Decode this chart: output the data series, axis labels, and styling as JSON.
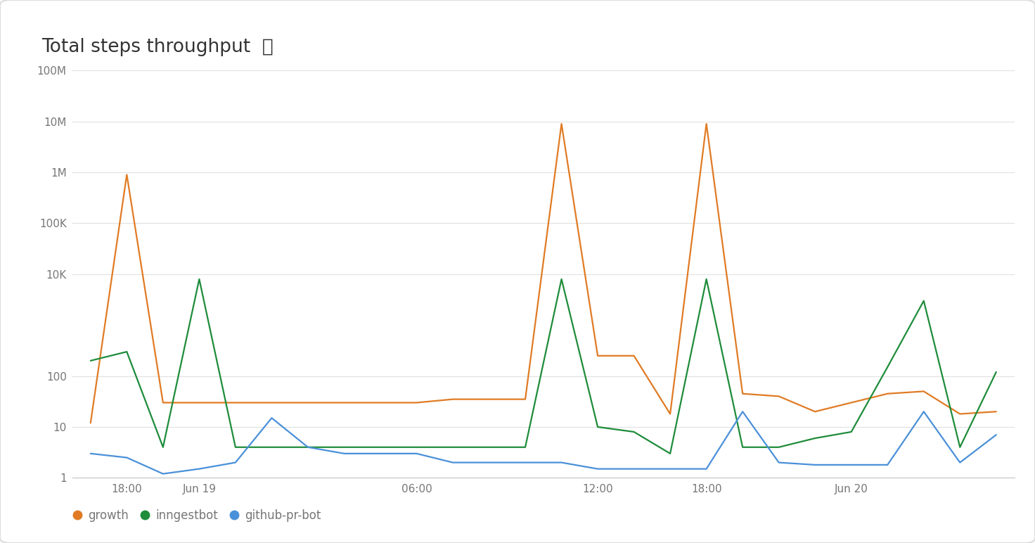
{
  "title_plain": "Total steps throughput",
  "title_symbol": "ⓘ",
  "background_color": "#f8f8f8",
  "card_color": "#ffffff",
  "plot_bg_color": "#ffffff",
  "grid_color": "#e0e0e0",
  "axis_color": "#cccccc",
  "tick_color": "#777777",
  "title_color": "#333333",
  "ylim_log": [
    1,
    100000000
  ],
  "yticks": [
    1,
    10,
    100,
    10000,
    100000,
    1000000,
    10000000,
    100000000
  ],
  "ytick_labels": [
    "1",
    "10",
    "100",
    "10K",
    "100K",
    "1M",
    "10M",
    "100M"
  ],
  "series": [
    {
      "name": "growth",
      "color": "#e07b24",
      "x": [
        0,
        1,
        2,
        3,
        4,
        5,
        6,
        7,
        8,
        9,
        10,
        11,
        12,
        13,
        14,
        15,
        16,
        17,
        18,
        19,
        20,
        21,
        22,
        23,
        24,
        25
      ],
      "y": [
        12,
        900000,
        30,
        30,
        30,
        30,
        30,
        30,
        30,
        30,
        35,
        35,
        35,
        9000000,
        250,
        250,
        18,
        9000000,
        45,
        40,
        20,
        30,
        45,
        50,
        18,
        20
      ]
    },
    {
      "name": "inngestbot",
      "color": "#1e8c3a",
      "x": [
        0,
        1,
        2,
        3,
        4,
        5,
        6,
        7,
        8,
        9,
        10,
        11,
        12,
        13,
        14,
        15,
        16,
        17,
        18,
        19,
        20,
        21,
        22,
        23,
        24,
        25
      ],
      "y": [
        200,
        300,
        4,
        8000,
        4,
        4,
        4,
        4,
        4,
        4,
        4,
        4,
        4,
        8000,
        10,
        8,
        3,
        8000,
        4,
        4,
        6,
        8,
        150,
        3000,
        4,
        120
      ]
    },
    {
      "name": "github-pr-bot",
      "color": "#4a90d9",
      "x": [
        0,
        1,
        2,
        3,
        4,
        5,
        6,
        7,
        8,
        9,
        10,
        11,
        12,
        13,
        14,
        15,
        16,
        17,
        18,
        19,
        20,
        21,
        22,
        23,
        24,
        25
      ],
      "y": [
        3,
        2.5,
        1.2,
        1.5,
        2,
        15,
        4,
        3,
        3,
        3,
        2,
        2,
        2,
        2,
        1.5,
        1.5,
        1.5,
        1.5,
        20,
        2,
        1.8,
        1.8,
        1.8,
        20,
        2,
        7
      ]
    }
  ],
  "legend": [
    {
      "label": "growth",
      "color": "#e07b24"
    },
    {
      "label": "inngestbot",
      "color": "#1e8c3a"
    },
    {
      "label": "github-pr-bot",
      "color": "#4a90d9"
    }
  ],
  "x_tick_positions": [
    1,
    3,
    6,
    9,
    11,
    14,
    17,
    21,
    25
  ],
  "x_tick_labels": [
    "18:00",
    "Jun 19",
    "",
    "06:00",
    "",
    "12:00",
    "18:00",
    "Jun 20",
    ""
  ],
  "xlim": [
    -0.5,
    25.5
  ]
}
